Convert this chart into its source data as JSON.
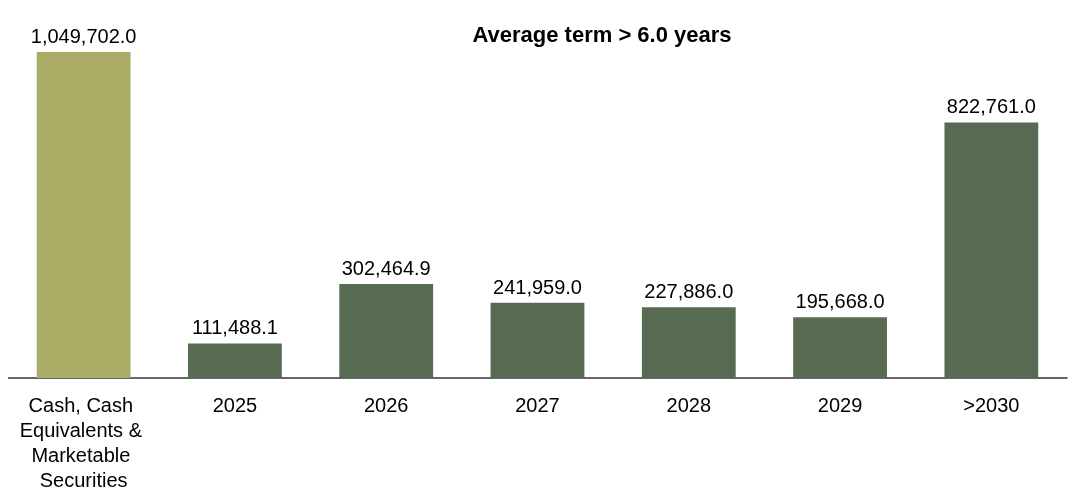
{
  "chart_data": {
    "type": "bar",
    "title": "Average term > 6.0 years",
    "categories": [
      "Cash, Cash Equivalents & Marketable Securities",
      "2025",
      "2026",
      "2027",
      "2028",
      "2029",
      ">2030"
    ],
    "values": [
      1049702.0,
      111488.1,
      302464.9,
      241959.0,
      227886.0,
      195668.0,
      822761.0
    ],
    "value_labels": [
      "1,049,702.0",
      "111,488.1",
      "302,464.9",
      "241,959.0",
      "227,886.0",
      "195,668.0",
      "822,761.0"
    ],
    "colors": [
      "#aaab65",
      "#566b51",
      "#566b51",
      "#566b51",
      "#566b51",
      "#566b51",
      "#566b51"
    ],
    "grid": false
  }
}
